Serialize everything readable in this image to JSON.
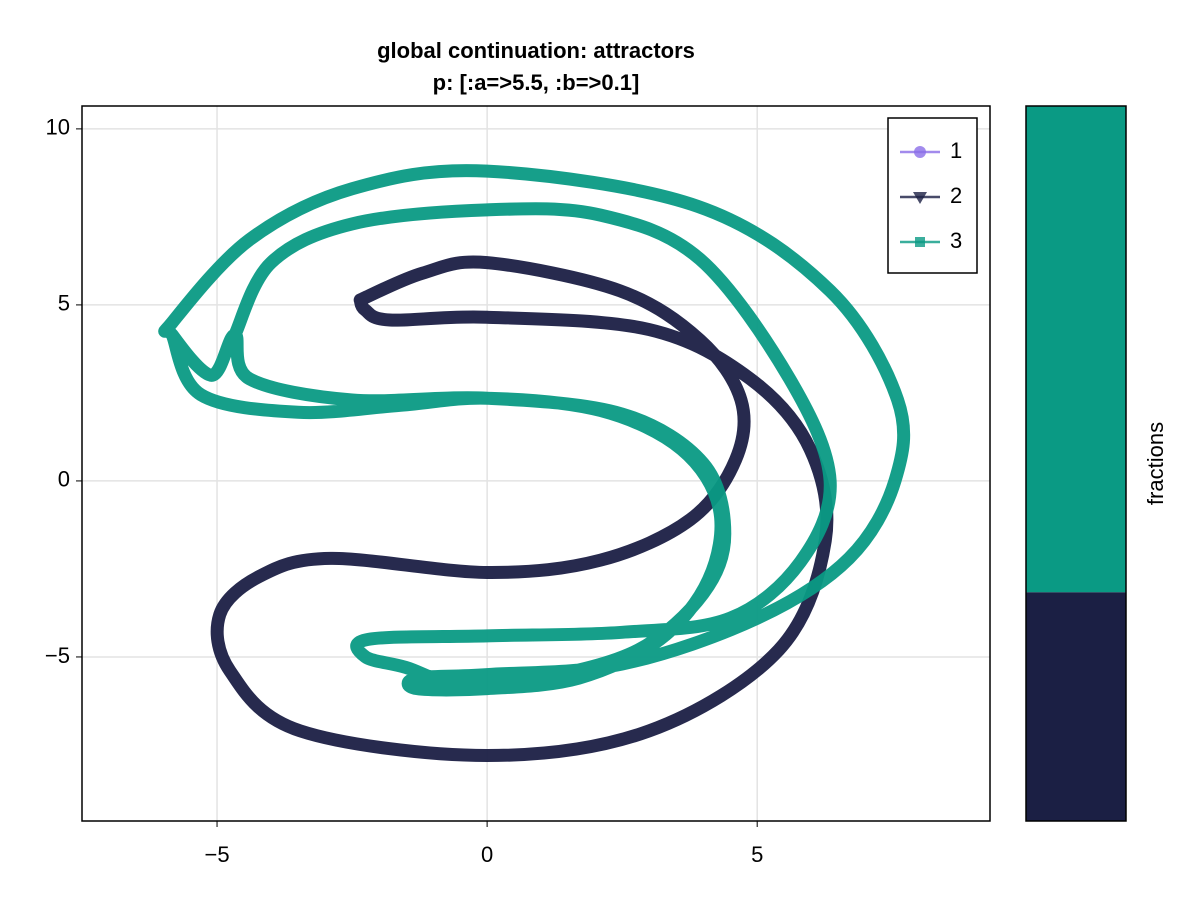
{
  "chart_data": [
    {
      "type": "line",
      "title": "global continuation: attractors",
      "subtitle": "p: [:a=>5.5, :b=>0.1]",
      "xlim": [
        -7.5,
        9.31
      ],
      "ylim": [
        -9.66,
        10.65
      ],
      "xticks": [
        {
          "value": -5,
          "label": "−5"
        },
        0,
        5
      ],
      "yticks": [
        10,
        5,
        0,
        {
          "value": -5,
          "label": "−5"
        }
      ],
      "grid": true,
      "legend": "top-right",
      "series": [
        {
          "name": "1",
          "color": "#8b6ee8",
          "marker": "circle",
          "x": [],
          "values": []
        },
        {
          "name": "2",
          "color": "#1b1f44",
          "marker": "triangle-down",
          "x": [
            -2.35,
            -1.2,
            0,
            2.46,
            3.94,
            4.7,
            4.6,
            3.76,
            2.1,
            0,
            -2.9,
            -4.2,
            -4.95,
            -4.76,
            -3.46,
            0,
            3.0,
            5.4,
            6.26,
            5.98,
            4.87,
            3.0,
            0,
            -1.8,
            -2.26,
            -2.35
          ],
          "values": [
            5.14,
            5.9,
            6.2,
            5.4,
            4.0,
            2.3,
            0.6,
            -1.1,
            -2.25,
            -2.6,
            -2.2,
            -2.7,
            -3.8,
            -5.4,
            -7.1,
            -7.8,
            -7.1,
            -4.8,
            -1.7,
            0.9,
            2.9,
            4.3,
            4.65,
            4.57,
            4.86,
            5.14
          ]
        },
        {
          "name": "3",
          "color": "#0a9a84",
          "marker": "square",
          "x": [
            -5.83,
            -5.3,
            -3.5,
            -1.6,
            0,
            2.1,
            3.6,
            4.3,
            4.1,
            3.2,
            1.7,
            0,
            -1.3,
            -1.3,
            0,
            2.5,
            5.0,
            6.7,
            7.55,
            7.6,
            6.35,
            3.9,
            0,
            -2.5,
            -4.4,
            -5.83,
            -5.83,
            -5.1,
            -4.67,
            -4.4,
            -2.5,
            0,
            2.5,
            4.0,
            4.4,
            4.0,
            2.8,
            1.0,
            -0.5,
            -1.5,
            -2.25,
            -2.2,
            0,
            2.5,
            4.5,
            5.8,
            6.35,
            5.6,
            3.94,
            2.1,
            0,
            -2.5,
            -4.0,
            -4.67
          ],
          "values": [
            4.15,
            2.45,
            1.95,
            2.15,
            2.35,
            2.0,
            0.9,
            -0.8,
            -2.8,
            -4.5,
            -5.6,
            -5.9,
            -5.9,
            -5.6,
            -5.5,
            -5.2,
            -3.9,
            -2.2,
            0,
            2.3,
            5.4,
            7.8,
            8.8,
            8.3,
            6.85,
            4.5,
            4.15,
            3.0,
            4.15,
            2.9,
            2.3,
            2.35,
            1.9,
            0.5,
            -1.5,
            -3.2,
            -4.8,
            -5.6,
            -5.8,
            -5.3,
            -5.0,
            -4.5,
            -4.4,
            -4.3,
            -3.9,
            -2.3,
            0,
            2.9,
            6.3,
            7.55,
            7.7,
            7.3,
            6.2,
            4.15
          ]
        }
      ]
    },
    {
      "type": "bar",
      "ylabel": "fractions",
      "ylim": [
        0,
        1
      ],
      "series": [
        {
          "color": "#8b6ee8",
          "values": [
            0
          ]
        },
        {
          "color": "#1b1f44",
          "values": [
            0.32
          ]
        },
        {
          "color": "#0a9a84",
          "values": [
            0.68
          ]
        }
      ]
    }
  ]
}
